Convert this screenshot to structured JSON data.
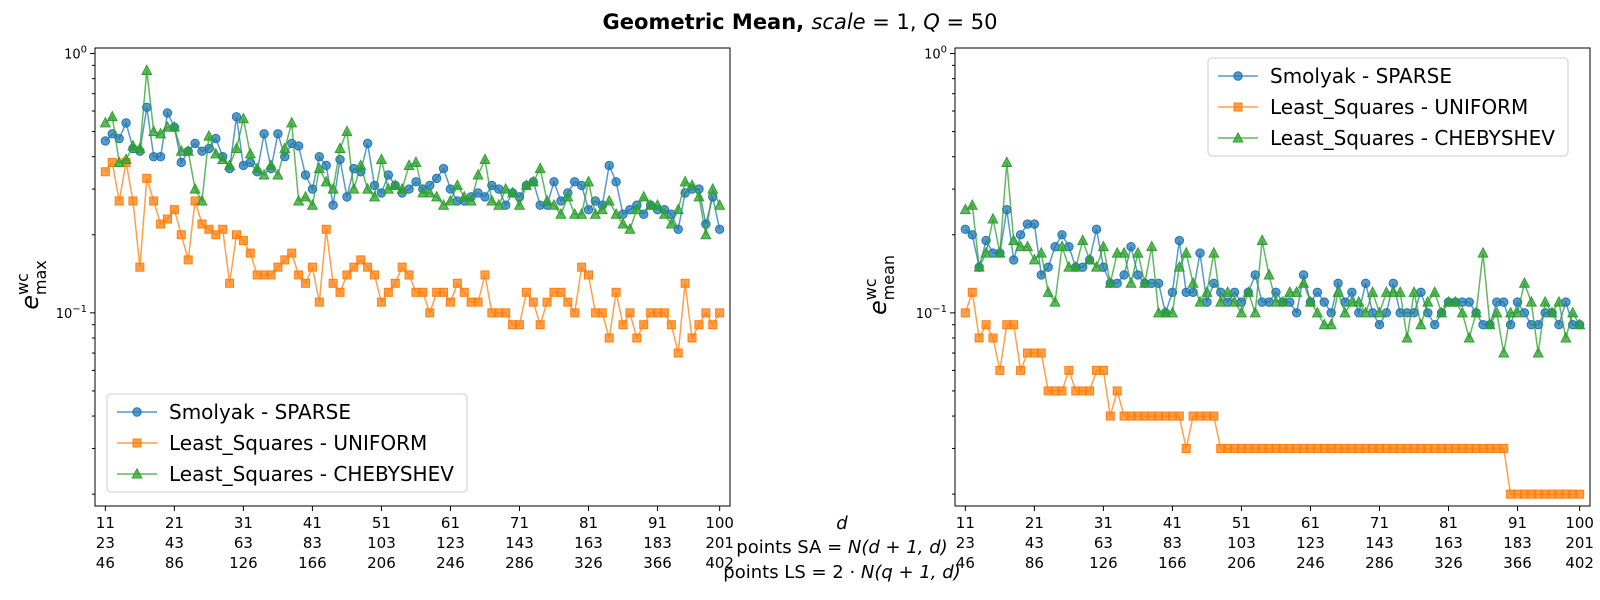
{
  "title": {
    "main": "Geometric Mean, ",
    "scale_var": "scale",
    "scale_eq": " = 1, ",
    "q_var": "Q",
    "q_eq": " = 50"
  },
  "xlabel": {
    "d": "d",
    "sa_prefix": "points SA = ",
    "sa_formula": "N(d + 1, d)",
    "ls_prefix": "points LS = 2 · ",
    "ls_formula": "N(q + 1, d)"
  },
  "colors": {
    "blue": "#1f77b4",
    "orange": "#ff7f0e",
    "green": "#2ca02c"
  },
  "chart_data": [
    {
      "type": "line",
      "yscale": "log",
      "ylim": [
        0.018,
        1.05
      ],
      "xlim": [
        9.5,
        101.5
      ],
      "ylabel": {
        "base": "e",
        "sup": "wc",
        "sub": "max"
      },
      "yticks": [
        {
          "value": 1,
          "base": "10",
          "exp": "0"
        },
        {
          "value": 0.1,
          "base": "10",
          "exp": "−1"
        }
      ],
      "xticks": [
        {
          "x": 11,
          "lines": [
            "11",
            "23",
            "46"
          ]
        },
        {
          "x": 21,
          "lines": [
            "21",
            "43",
            "86"
          ]
        },
        {
          "x": 31,
          "lines": [
            "31",
            "63",
            "126"
          ]
        },
        {
          "x": 41,
          "lines": [
            "41",
            "83",
            "166"
          ]
        },
        {
          "x": 51,
          "lines": [
            "51",
            "103",
            "206"
          ]
        },
        {
          "x": 61,
          "lines": [
            "61",
            "123",
            "246"
          ]
        },
        {
          "x": 71,
          "lines": [
            "71",
            "143",
            "286"
          ]
        },
        {
          "x": 81,
          "lines": [
            "81",
            "163",
            "326"
          ]
        },
        {
          "x": 91,
          "lines": [
            "91",
            "183",
            "366"
          ]
        },
        {
          "x": 100,
          "lines": [
            "100",
            "201",
            "402"
          ]
        }
      ],
      "legend_position": "lower-left",
      "x_start": 11,
      "series": [
        {
          "name": "Smolyak - SPARSE",
          "color": "#1f77b4",
          "marker": "circle",
          "values": [
            0.46,
            0.49,
            0.47,
            0.54,
            0.43,
            0.42,
            0.62,
            0.4,
            0.4,
            0.59,
            0.52,
            0.38,
            0.42,
            0.45,
            0.42,
            0.43,
            0.47,
            0.4,
            0.36,
            0.57,
            0.37,
            0.38,
            0.35,
            0.49,
            0.36,
            0.49,
            0.4,
            0.45,
            0.44,
            0.34,
            0.3,
            0.4,
            0.37,
            0.26,
            0.39,
            0.28,
            0.36,
            0.35,
            0.45,
            0.31,
            0.29,
            0.34,
            0.31,
            0.29,
            0.3,
            0.32,
            0.3,
            0.31,
            0.33,
            0.36,
            0.3,
            0.27,
            0.27,
            0.28,
            0.29,
            0.28,
            0.31,
            0.3,
            0.26,
            0.29,
            0.28,
            0.31,
            0.32,
            0.26,
            0.26,
            0.32,
            0.27,
            0.29,
            0.32,
            0.31,
            0.25,
            0.27,
            0.26,
            0.37,
            0.32,
            0.24,
            0.25,
            0.26,
            0.24,
            0.26,
            0.25,
            0.25,
            0.24,
            0.21,
            0.29,
            0.3,
            0.3,
            0.22,
            0.28,
            0.21
          ]
        },
        {
          "name": "Least_Squares - UNIFORM",
          "color": "#ff7f0e",
          "marker": "square",
          "values": [
            0.35,
            0.38,
            0.27,
            0.38,
            0.27,
            0.15,
            0.33,
            0.27,
            0.22,
            0.23,
            0.25,
            0.2,
            0.16,
            0.27,
            0.22,
            0.21,
            0.2,
            0.21,
            0.13,
            0.2,
            0.19,
            0.17,
            0.14,
            0.14,
            0.14,
            0.15,
            0.16,
            0.17,
            0.14,
            0.13,
            0.15,
            0.11,
            0.21,
            0.13,
            0.12,
            0.14,
            0.15,
            0.16,
            0.15,
            0.14,
            0.11,
            0.12,
            0.13,
            0.15,
            0.14,
            0.12,
            0.12,
            0.1,
            0.12,
            0.12,
            0.11,
            0.13,
            0.12,
            0.11,
            0.11,
            0.14,
            0.1,
            0.1,
            0.1,
            0.09,
            0.09,
            0.12,
            0.11,
            0.09,
            0.11,
            0.12,
            0.12,
            0.11,
            0.1,
            0.15,
            0.14,
            0.1,
            0.1,
            0.08,
            0.12,
            0.09,
            0.1,
            0.08,
            0.09,
            0.1,
            0.1,
            0.1,
            0.09,
            0.07,
            0.13,
            0.08,
            0.09,
            0.1,
            0.09,
            0.1
          ]
        },
        {
          "name": "Least_Squares - CHEBYSHEV",
          "color": "#2ca02c",
          "marker": "triangle",
          "values": [
            0.54,
            0.57,
            0.38,
            0.39,
            0.44,
            0.43,
            0.86,
            0.5,
            0.49,
            0.52,
            0.52,
            0.42,
            0.42,
            0.3,
            0.27,
            0.48,
            0.41,
            0.39,
            0.37,
            0.43,
            0.56,
            0.41,
            0.36,
            0.34,
            0.37,
            0.34,
            0.43,
            0.54,
            0.27,
            0.28,
            0.26,
            0.36,
            0.32,
            0.3,
            0.43,
            0.5,
            0.3,
            0.37,
            0.3,
            0.28,
            0.39,
            0.3,
            0.31,
            0.3,
            0.37,
            0.38,
            0.29,
            0.29,
            0.28,
            0.26,
            0.27,
            0.31,
            0.28,
            0.27,
            0.34,
            0.39,
            0.27,
            0.26,
            0.3,
            0.29,
            0.26,
            0.31,
            0.32,
            0.36,
            0.27,
            0.26,
            0.24,
            0.28,
            0.24,
            0.24,
            0.32,
            0.24,
            0.25,
            0.27,
            0.24,
            0.22,
            0.21,
            0.25,
            0.28,
            0.26,
            0.26,
            0.24,
            0.22,
            0.25,
            0.32,
            0.31,
            0.28,
            0.2,
            0.3,
            0.26
          ]
        }
      ]
    },
    {
      "type": "line",
      "yscale": "log",
      "ylim": [
        0.018,
        1.05
      ],
      "xlim": [
        9.5,
        101.5
      ],
      "ylabel": {
        "base": "e",
        "sup": "wc",
        "sub": "mean"
      },
      "yticks": [
        {
          "value": 1,
          "base": "10",
          "exp": "0"
        },
        {
          "value": 0.1,
          "base": "10",
          "exp": "−1"
        }
      ],
      "xticks": [
        {
          "x": 11,
          "lines": [
            "11",
            "23",
            "46"
          ]
        },
        {
          "x": 21,
          "lines": [
            "21",
            "43",
            "86"
          ]
        },
        {
          "x": 31,
          "lines": [
            "31",
            "63",
            "126"
          ]
        },
        {
          "x": 41,
          "lines": [
            "41",
            "83",
            "166"
          ]
        },
        {
          "x": 51,
          "lines": [
            "51",
            "103",
            "206"
          ]
        },
        {
          "x": 61,
          "lines": [
            "61",
            "123",
            "246"
          ]
        },
        {
          "x": 71,
          "lines": [
            "71",
            "143",
            "286"
          ]
        },
        {
          "x": 81,
          "lines": [
            "81",
            "163",
            "326"
          ]
        },
        {
          "x": 91,
          "lines": [
            "91",
            "183",
            "366"
          ]
        },
        {
          "x": 100,
          "lines": [
            "100",
            "201",
            "402"
          ]
        }
      ],
      "legend_position": "upper-right",
      "x_start": 11,
      "series": [
        {
          "name": "Smolyak - SPARSE",
          "color": "#1f77b4",
          "marker": "circle",
          "values": [
            0.21,
            0.2,
            0.15,
            0.19,
            0.17,
            0.17,
            0.25,
            0.16,
            0.2,
            0.22,
            0.22,
            0.14,
            0.15,
            0.18,
            0.2,
            0.18,
            0.15,
            0.15,
            0.16,
            0.21,
            0.15,
            0.13,
            0.13,
            0.14,
            0.18,
            0.14,
            0.13,
            0.13,
            0.13,
            0.1,
            0.12,
            0.19,
            0.12,
            0.12,
            0.17,
            0.11,
            0.13,
            0.12,
            0.11,
            0.12,
            0.11,
            0.12,
            0.14,
            0.11,
            0.11,
            0.12,
            0.11,
            0.11,
            0.1,
            0.14,
            0.11,
            0.12,
            0.11,
            0.1,
            0.13,
            0.11,
            0.12,
            0.1,
            0.13,
            0.1,
            0.09,
            0.1,
            0.13,
            0.1,
            0.1,
            0.1,
            0.12,
            0.1,
            0.09,
            0.1,
            0.11,
            0.11,
            0.11,
            0.11,
            0.1,
            0.09,
            0.09,
            0.11,
            0.11,
            0.09,
            0.11,
            0.1,
            0.09,
            0.09,
            0.1,
            0.1,
            0.09,
            0.11,
            0.09,
            0.09
          ]
        },
        {
          "name": "Least_Squares - UNIFORM",
          "color": "#ff7f0e",
          "marker": "square",
          "values": [
            0.1,
            0.12,
            0.08,
            0.09,
            0.08,
            0.06,
            0.09,
            0.09,
            0.06,
            0.07,
            0.07,
            0.07,
            0.05,
            0.05,
            0.05,
            0.06,
            0.05,
            0.05,
            0.05,
            0.06,
            0.06,
            0.04,
            0.05,
            0.04,
            0.04,
            0.04,
            0.04,
            0.04,
            0.04,
            0.04,
            0.04,
            0.04,
            0.03,
            0.04,
            0.04,
            0.04,
            0.04,
            0.03,
            0.03,
            0.03,
            0.03,
            0.03,
            0.03,
            0.03,
            0.03,
            0.03,
            0.03,
            0.03,
            0.03,
            0.03,
            0.03,
            0.03,
            0.03,
            0.03,
            0.03,
            0.03,
            0.03,
            0.03,
            0.03,
            0.03,
            0.03,
            0.03,
            0.03,
            0.03,
            0.03,
            0.03,
            0.03,
            0.03,
            0.03,
            0.03,
            0.03,
            0.03,
            0.03,
            0.03,
            0.03,
            0.03,
            0.03,
            0.03,
            0.03,
            0.02,
            0.02,
            0.02,
            0.02,
            0.02,
            0.02,
            0.02,
            0.02,
            0.02,
            0.02,
            0.02
          ]
        },
        {
          "name": "Least_Squares - CHEBYSHEV",
          "color": "#2ca02c",
          "marker": "triangle",
          "values": [
            0.25,
            0.26,
            0.15,
            0.17,
            0.23,
            0.17,
            0.38,
            0.19,
            0.18,
            0.18,
            0.16,
            0.17,
            0.12,
            0.11,
            0.18,
            0.15,
            0.15,
            0.19,
            0.16,
            0.15,
            0.18,
            0.13,
            0.17,
            0.17,
            0.13,
            0.17,
            0.13,
            0.18,
            0.1,
            0.1,
            0.1,
            0.15,
            0.17,
            0.13,
            0.11,
            0.12,
            0.17,
            0.11,
            0.12,
            0.11,
            0.1,
            0.12,
            0.1,
            0.19,
            0.14,
            0.11,
            0.11,
            0.12,
            0.12,
            0.13,
            0.11,
            0.1,
            0.09,
            0.09,
            0.12,
            0.1,
            0.11,
            0.11,
            0.1,
            0.12,
            0.1,
            0.12,
            0.12,
            0.12,
            0.08,
            0.12,
            0.09,
            0.11,
            0.12,
            0.1,
            0.11,
            0.11,
            0.1,
            0.08,
            0.1,
            0.17,
            0.09,
            0.1,
            0.07,
            0.1,
            0.1,
            0.13,
            0.11,
            0.07,
            0.11,
            0.1,
            0.11,
            0.08,
            0.1,
            0.09
          ]
        }
      ]
    }
  ]
}
